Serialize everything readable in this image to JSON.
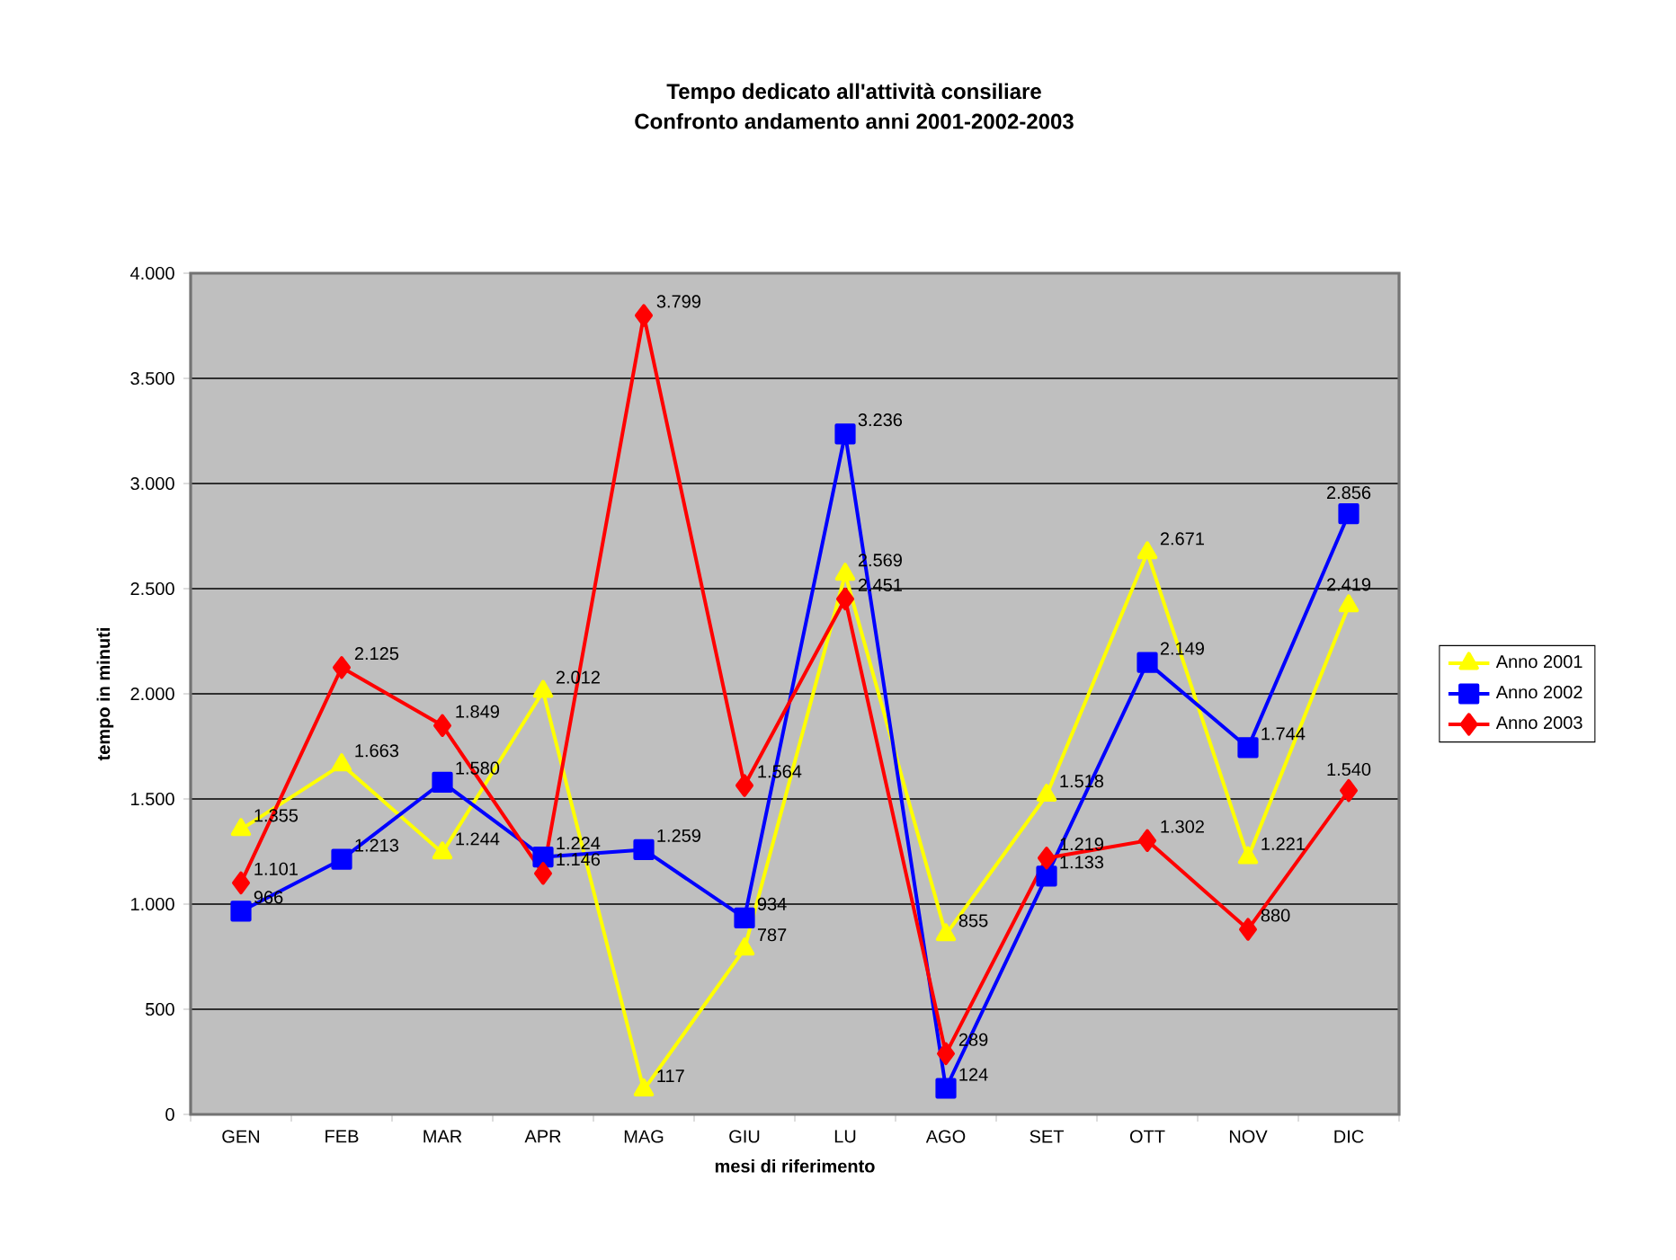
{
  "chart_data": {
    "type": "line",
    "title": "Tempo dedicato all'attività consiliare",
    "subtitle": "Confronto andamento anni 2001-2002-2003",
    "xlabel": "mesi di riferimento",
    "ylabel": "tempo in minuti",
    "categories": [
      "GEN",
      "FEB",
      "MAR",
      "APR",
      "MAG",
      "GIU",
      "LU",
      "AGO",
      "SET",
      "OTT",
      "NOV",
      "DIC"
    ],
    "ylim": [
      0,
      4000
    ],
    "yticks": [
      0,
      500,
      {
        "value": 1000,
        "label": "1.000"
      },
      {
        "value": 1500,
        "label": "1.500"
      },
      {
        "value": 2000,
        "label": "2.000"
      },
      {
        "value": 2500,
        "label": "2.500"
      },
      {
        "value": 3000,
        "label": "3.000"
      },
      {
        "value": 3500,
        "label": "3.500"
      },
      {
        "value": 4000,
        "label": "4.000"
      }
    ],
    "grid": "y",
    "legend": "right",
    "line_style": "solid",
    "series": [
      {
        "name": "Anno 2001",
        "color": "#ffff00",
        "marker": "triangle",
        "values": [
          1355,
          1663,
          1244,
          2012,
          117,
          787,
          2569,
          855,
          1518,
          2671,
          1221,
          2419
        ],
        "value_labels": [
          "1.355",
          "1.663",
          "1.244",
          "2.012",
          "117",
          "787",
          "2.569",
          "855",
          "1.518",
          "2.671",
          "1.221",
          "2.419"
        ]
      },
      {
        "name": "Anno 2002",
        "color": "#0000ff",
        "marker": "square",
        "values": [
          966,
          1213,
          1580,
          1224,
          1259,
          934,
          3236,
          124,
          1133,
          2149,
          1744,
          2856
        ],
        "value_labels": [
          "966",
          "1.213",
          "1.580",
          "1.224",
          "1.259",
          "934",
          "3.236",
          "124",
          "1.133",
          "2.149",
          "1.744",
          "2.856"
        ]
      },
      {
        "name": "Anno 2003",
        "color": "#ff0000",
        "marker": "diamond",
        "values": [
          1101,
          2125,
          1849,
          1146,
          3799,
          1564,
          2451,
          289,
          1219,
          1302,
          880,
          1540
        ],
        "value_labels": [
          "1.101",
          "2.125",
          "1.849",
          "1.146",
          "3.799",
          "1.564",
          "2.451",
          "289",
          "1.219",
          "1.302",
          "880",
          "1.540"
        ]
      }
    ]
  }
}
